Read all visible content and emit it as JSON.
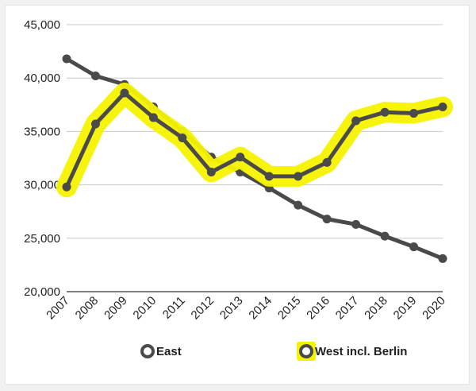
{
  "chart_data": {
    "type": "line",
    "title": "",
    "xlabel": "",
    "ylabel": "",
    "x": [
      "2007",
      "2008",
      "2009",
      "2010",
      "2011",
      "2012",
      "2013",
      "2014",
      "2015",
      "2016",
      "2017",
      "2018",
      "2019",
      "2020"
    ],
    "ylim": [
      20000,
      45000
    ],
    "yticks": [
      20000,
      25000,
      30000,
      35000,
      40000,
      45000
    ],
    "ytick_labels": [
      "20,000",
      "25,000",
      "30,000",
      "35,000",
      "40,000",
      "45,000"
    ],
    "grid": true,
    "legend_position": "bottom",
    "series": [
      {
        "name": "East",
        "color": "#4a4a4a",
        "highlighted": false,
        "values": [
          41800,
          40200,
          39400,
          37300,
          35000,
          32600,
          31200,
          29700,
          28100,
          26800,
          26300,
          25200,
          24200,
          23100
        ]
      },
      {
        "name": "West incl. Berlin",
        "color": "#4a4a4a",
        "highlight_color": "#f5f200",
        "highlighted": true,
        "values": [
          29800,
          35700,
          38600,
          36300,
          34400,
          31200,
          32600,
          30800,
          30800,
          32100,
          36000,
          36800,
          36700,
          37300
        ]
      }
    ]
  }
}
